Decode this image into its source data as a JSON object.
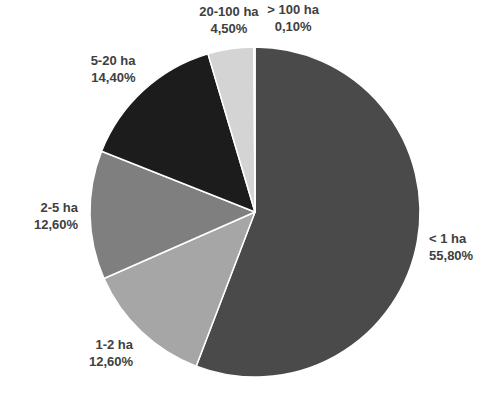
{
  "chart_data": {
    "type": "pie",
    "categories": [
      "< 1 ha",
      "1-2 ha",
      "2-5 ha",
      "5-20 ha",
      "20-100 ha",
      "> 100 ha"
    ],
    "values": [
      55.8,
      12.6,
      12.6,
      14.4,
      4.5,
      0.1
    ],
    "value_labels": [
      "55,80%",
      "12,60%",
      "12,60%",
      "14,40%",
      "4,50%",
      "0,10%"
    ],
    "colors": [
      "#4a4a4a",
      "#a6a6a6",
      "#7f7f7f",
      "#1c1c1c",
      "#d4d4d4",
      "#ebebeb"
    ],
    "data_labels": true
  }
}
